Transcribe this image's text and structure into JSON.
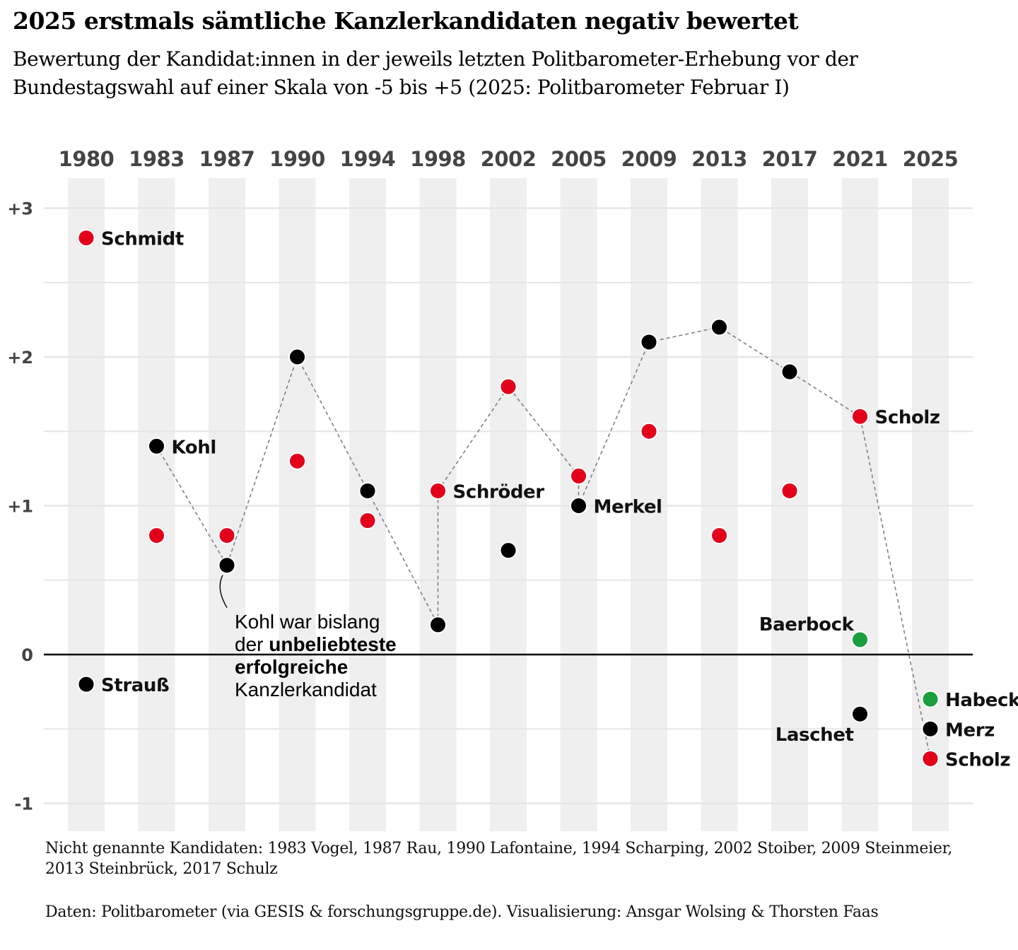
{
  "title": "2025 erstmals sämtliche Kanzlerkandidaten negativ bewertet",
  "subtitle": "Bewertung der Kandidat:innen in der jeweils letzten Politbarometer-Erhebung vor der Bundestagswahl auf einer Skala von -5 bis +5 (2025: Politbarometer Februar I)",
  "caption_note": "Nicht genannte Kandidaten: 1983 Vogel, 1987 Rau, 1990 Lafontaine, 1994 Scharping, 2002 Stoiber, 2009 Steinmeier, 2013 Steinbrück, 2017 Schulz",
  "caption_source": "Daten: Politbarometer (via GESIS & forschungsgruppe.de). Visualisierung: Ansgar Wolsing & Thorsten Faas",
  "colors": {
    "red": "#e3001b",
    "black": "#000000",
    "green": "#1b9e3e",
    "band": "#efefef",
    "grid": "#e6e6e6",
    "year_label": "#444444"
  },
  "chart_data": {
    "type": "scatter",
    "categories": [
      "1980",
      "1983",
      "1987",
      "1990",
      "1994",
      "1998",
      "2002",
      "2005",
      "2009",
      "2013",
      "2017",
      "2021",
      "2025"
    ],
    "ylim": [
      -1.2,
      3.2
    ],
    "yticks": [
      {
        "value": 3,
        "label": "+3"
      },
      {
        "value": 2,
        "label": "+2"
      },
      {
        "value": 1,
        "label": "+1"
      },
      {
        "value": 0,
        "label": "0"
      },
      {
        "value": -1,
        "label": "-1"
      }
    ],
    "minor_gridlines": [
      2.5,
      1.5,
      0.5,
      -0.5
    ],
    "points": [
      {
        "year": "1980",
        "value": 2.8,
        "party_color": "red",
        "label": "Schmidt"
      },
      {
        "year": "1980",
        "value": -0.2,
        "party_color": "black",
        "label": "Strauß"
      },
      {
        "year": "1983",
        "value": 1.4,
        "party_color": "black",
        "label": "Kohl"
      },
      {
        "year": "1983",
        "value": 0.8,
        "party_color": "red",
        "label": ""
      },
      {
        "year": "1987",
        "value": 0.8,
        "party_color": "red",
        "label": ""
      },
      {
        "year": "1987",
        "value": 0.6,
        "party_color": "black",
        "label": ""
      },
      {
        "year": "1990",
        "value": 2.0,
        "party_color": "black",
        "label": ""
      },
      {
        "year": "1990",
        "value": 1.3,
        "party_color": "red",
        "label": ""
      },
      {
        "year": "1994",
        "value": 1.1,
        "party_color": "black",
        "label": ""
      },
      {
        "year": "1994",
        "value": 0.9,
        "party_color": "red",
        "label": ""
      },
      {
        "year": "1998",
        "value": 1.1,
        "party_color": "red",
        "label": "Schröder"
      },
      {
        "year": "1998",
        "value": 0.2,
        "party_color": "black",
        "label": ""
      },
      {
        "year": "2002",
        "value": 1.8,
        "party_color": "red",
        "label": ""
      },
      {
        "year": "2002",
        "value": 0.7,
        "party_color": "black",
        "label": ""
      },
      {
        "year": "2005",
        "value": 1.2,
        "party_color": "red",
        "label": ""
      },
      {
        "year": "2005",
        "value": 1.0,
        "party_color": "black",
        "label": "Merkel"
      },
      {
        "year": "2009",
        "value": 2.1,
        "party_color": "black",
        "label": ""
      },
      {
        "year": "2009",
        "value": 1.5,
        "party_color": "red",
        "label": ""
      },
      {
        "year": "2013",
        "value": 2.2,
        "party_color": "black",
        "label": ""
      },
      {
        "year": "2013",
        "value": 0.8,
        "party_color": "red",
        "label": ""
      },
      {
        "year": "2017",
        "value": 1.9,
        "party_color": "black",
        "label": ""
      },
      {
        "year": "2017",
        "value": 1.1,
        "party_color": "red",
        "label": ""
      },
      {
        "year": "2021",
        "value": 1.6,
        "party_color": "red",
        "label": "Scholz"
      },
      {
        "year": "2021",
        "value": 0.1,
        "party_color": "green",
        "label": "Baerbock"
      },
      {
        "year": "2021",
        "value": -0.4,
        "party_color": "black",
        "label": "Laschet"
      },
      {
        "year": "2025",
        "value": -0.3,
        "party_color": "green",
        "label": "Habeck"
      },
      {
        "year": "2025",
        "value": -0.5,
        "party_color": "black",
        "label": "Merz"
      },
      {
        "year": "2025",
        "value": -0.7,
        "party_color": "red",
        "label": "Scholz"
      }
    ],
    "winner_path": [
      {
        "year": "1983",
        "value": 1.4
      },
      {
        "year": "1987",
        "value": 0.6
      },
      {
        "year": "1990",
        "value": 2.0
      },
      {
        "year": "1994",
        "value": 1.1
      },
      {
        "year": "1998",
        "value": 0.2
      },
      {
        "year": "1998",
        "value": 1.1
      },
      {
        "year": "2002",
        "value": 1.8
      },
      {
        "year": "2005",
        "value": 1.2
      },
      {
        "year": "2005",
        "value": 1.0
      },
      {
        "year": "2009",
        "value": 2.1
      },
      {
        "year": "2013",
        "value": 2.2
      },
      {
        "year": "2017",
        "value": 1.9
      },
      {
        "year": "2021",
        "value": 1.6
      },
      {
        "year": "2025",
        "value": -0.7
      }
    ],
    "annotation": {
      "year": "1987",
      "value": 0.6,
      "lines": [
        [
          {
            "text": "Kohl war bislang",
            "bold": false
          }
        ],
        [
          {
            "text": "der ",
            "bold": false
          },
          {
            "text": "unbeliebteste",
            "bold": true
          }
        ],
        [
          {
            "text": "erfolgreiche",
            "bold": true
          }
        ],
        [
          {
            "text": "Kanzlerkandidat",
            "bold": false
          }
        ]
      ]
    }
  }
}
